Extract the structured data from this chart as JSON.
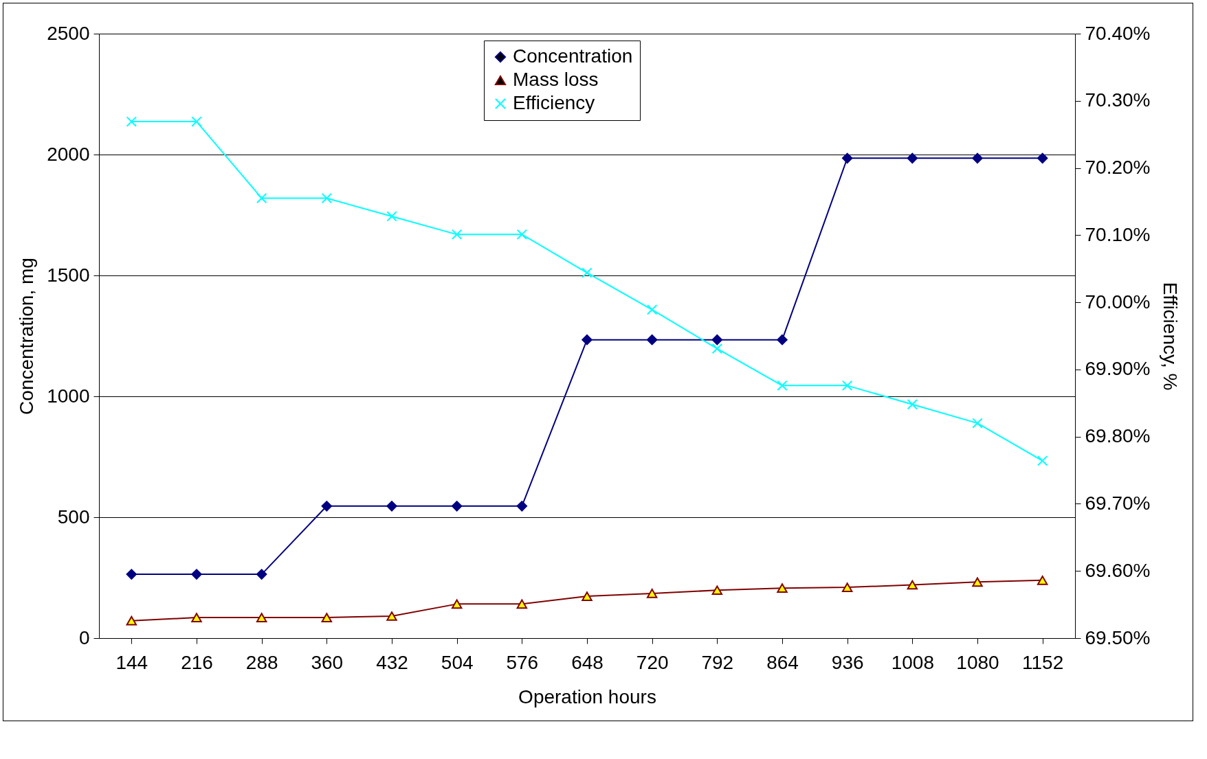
{
  "chart_data": {
    "type": "line",
    "xlabel": "Operation hours",
    "ylabel": "Concentration, mg",
    "y2label": "Efficiency, %",
    "categories": [
      "144",
      "216",
      "288",
      "360",
      "432",
      "504",
      "576",
      "648",
      "720",
      "792",
      "864",
      "936",
      "1008",
      "1080",
      "1152"
    ],
    "series": [
      {
        "name": "Concentration",
        "color": "#000080",
        "marker": "diamond",
        "values": [
          264,
          264,
          264,
          546,
          546,
          546,
          546,
          1234,
          1234,
          1234,
          1234,
          1985,
          1985,
          1985,
          1985
        ]
      },
      {
        "name": "Mass loss",
        "color": "#800000",
        "marker": "triangle",
        "colors": [
          "#ffff00",
          "#ffff00",
          "#ffff00",
          "#ffff00",
          "#ffff00",
          "#ffff00",
          "#ffff00",
          "#ffff00",
          "#ffff00",
          "#ffff00",
          "#ffff00",
          "#ffff00",
          "#ffff00",
          "#ffff00",
          "#ffff00"
        ],
        "values": [
          72,
          85,
          85,
          85,
          91,
          141,
          141,
          173,
          185,
          198,
          207,
          210,
          220,
          232,
          239
        ]
      },
      {
        "name": "Efficiency",
        "color": "#00ffff",
        "marker": "cross",
        "axis": "y2",
        "values": [
          70.269,
          70.269,
          70.155,
          70.155,
          70.128,
          70.101,
          70.101,
          70.044,
          69.989,
          69.931,
          69.876,
          69.876,
          69.848,
          69.82,
          69.764
        ]
      }
    ],
    "ylim": [
      0,
      2500
    ],
    "yticks": [
      0,
      500,
      1000,
      1500,
      2000,
      2500
    ],
    "y2lim": [
      69.5,
      70.4
    ],
    "y2ticks": [
      {
        "value": 69.5,
        "label": "69.50%"
      },
      {
        "value": 69.6,
        "label": "69.60%"
      },
      {
        "value": 69.7,
        "label": "69.70%"
      },
      {
        "value": 69.8,
        "label": "69.80%"
      },
      {
        "value": 69.9,
        "label": "69.90%"
      },
      {
        "value": 70.0,
        "label": "70.00%"
      },
      {
        "value": 70.1,
        "label": "70.10%"
      },
      {
        "value": 70.2,
        "label": "70.20%"
      },
      {
        "value": 70.3,
        "label": "70.30%"
      },
      {
        "value": 70.4,
        "label": "70.40%"
      }
    ],
    "grid": "y",
    "legend": "top",
    "line_style": "solid"
  }
}
